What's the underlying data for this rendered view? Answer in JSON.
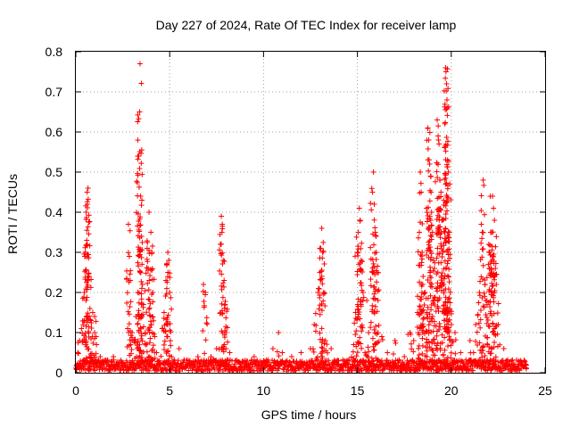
{
  "chart_data": {
    "type": "scatter",
    "title": "Day 227 of 2024, Rate Of TEC Index for receiver lamp",
    "xlabel": "GPS time / hours",
    "ylabel": "ROTI / TECUs",
    "xlim": [
      0,
      25
    ],
    "ylim": [
      0,
      0.8
    ],
    "x_ticks": [
      "0",
      "5",
      "10",
      "15",
      "20",
      "25"
    ],
    "y_ticks": [
      "0",
      "0.1",
      "0.2",
      "0.3",
      "0.4",
      "0.5",
      "0.6",
      "0.7",
      "0.8"
    ],
    "grid": true,
    "legend": "none",
    "marker": "plus",
    "color": "#ff0000",
    "x_range_of_data": [
      0,
      24
    ],
    "baseline_level": 0.02,
    "series": [
      {
        "points": [
          [
            0.05,
            0.01
          ],
          [
            0.1,
            0.05
          ],
          [
            0.2,
            0.08
          ],
          [
            0.3,
            0.11
          ],
          [
            0.45,
            0.2
          ],
          [
            0.5,
            0.29
          ],
          [
            0.55,
            0.4
          ],
          [
            0.6,
            0.45
          ],
          [
            0.65,
            0.46
          ],
          [
            0.62,
            0.42
          ],
          [
            0.58,
            0.33
          ],
          [
            0.7,
            0.24
          ],
          [
            0.75,
            0.16
          ],
          [
            0.8,
            0.13
          ],
          [
            0.9,
            0.15
          ],
          [
            1.0,
            0.14
          ],
          [
            1.0,
            0.1
          ],
          [
            1.1,
            0.07
          ],
          [
            1.3,
            0.04
          ],
          [
            1.6,
            0.03
          ],
          [
            2.0,
            0.04
          ],
          [
            2.5,
            0.02
          ],
          [
            2.8,
            0.37
          ],
          [
            2.85,
            0.29
          ],
          [
            2.9,
            0.23
          ],
          [
            3.0,
            0.1
          ],
          [
            3.1,
            0.08
          ],
          [
            3.2,
            0.14
          ],
          [
            3.3,
            0.2
          ],
          [
            3.35,
            0.54
          ],
          [
            3.4,
            0.65
          ],
          [
            3.42,
            0.77
          ],
          [
            3.45,
            0.44
          ],
          [
            3.5,
            0.34
          ],
          [
            3.55,
            0.22
          ],
          [
            3.6,
            0.17
          ],
          [
            3.7,
            0.1
          ],
          [
            3.8,
            0.31
          ],
          [
            3.85,
            0.26
          ],
          [
            3.9,
            0.4
          ],
          [
            4.0,
            0.35
          ],
          [
            4.05,
            0.3
          ],
          [
            4.1,
            0.2
          ],
          [
            4.2,
            0.09
          ],
          [
            4.3,
            0.05
          ],
          [
            4.6,
            0.11
          ],
          [
            4.7,
            0.15
          ],
          [
            4.8,
            0.23
          ],
          [
            4.85,
            0.27
          ],
          [
            4.9,
            0.3
          ],
          [
            4.95,
            0.28
          ],
          [
            5.0,
            0.2
          ],
          [
            5.1,
            0.04
          ],
          [
            5.5,
            0.06
          ],
          [
            6.0,
            0.03
          ],
          [
            6.5,
            0.04
          ],
          [
            6.8,
            0.22
          ],
          [
            6.9,
            0.2
          ],
          [
            7.2,
            0.04
          ],
          [
            7.5,
            0.06
          ],
          [
            7.7,
            0.32
          ],
          [
            7.75,
            0.39
          ],
          [
            7.8,
            0.37
          ],
          [
            7.85,
            0.28
          ],
          [
            7.9,
            0.23
          ],
          [
            7.95,
            0.17
          ],
          [
            8.0,
            0.1
          ],
          [
            8.2,
            0.05
          ],
          [
            8.5,
            0.03
          ],
          [
            9.0,
            0.03
          ],
          [
            9.5,
            0.04
          ],
          [
            10.0,
            0.03
          ],
          [
            10.5,
            0.06
          ],
          [
            10.8,
            0.1
          ],
          [
            11.0,
            0.05
          ],
          [
            11.5,
            0.04
          ],
          [
            12.0,
            0.05
          ],
          [
            12.5,
            0.06
          ],
          [
            12.7,
            0.12
          ],
          [
            12.9,
            0.2
          ],
          [
            13.0,
            0.25
          ],
          [
            13.05,
            0.31
          ],
          [
            13.1,
            0.36
          ],
          [
            13.15,
            0.3
          ],
          [
            13.2,
            0.2
          ],
          [
            13.3,
            0.08
          ],
          [
            13.6,
            0.06
          ],
          [
            14.0,
            0.03
          ],
          [
            14.5,
            0.03
          ],
          [
            14.8,
            0.07
          ],
          [
            14.9,
            0.15
          ],
          [
            15.0,
            0.3
          ],
          [
            15.05,
            0.35
          ],
          [
            15.1,
            0.41
          ],
          [
            15.15,
            0.38
          ],
          [
            15.2,
            0.28
          ],
          [
            15.3,
            0.2
          ],
          [
            15.5,
            0.18
          ],
          [
            15.6,
            0.1
          ],
          [
            15.8,
            0.45
          ],
          [
            15.85,
            0.5
          ],
          [
            15.9,
            0.42
          ],
          [
            15.95,
            0.35
          ],
          [
            16.0,
            0.3
          ],
          [
            16.05,
            0.25
          ],
          [
            16.1,
            0.1
          ],
          [
            16.3,
            0.09
          ],
          [
            16.6,
            0.05
          ],
          [
            17.0,
            0.08
          ],
          [
            17.5,
            0.04
          ],
          [
            17.8,
            0.1
          ],
          [
            18.0,
            0.08
          ],
          [
            18.2,
            0.15
          ],
          [
            18.3,
            0.35
          ],
          [
            18.35,
            0.5
          ],
          [
            18.4,
            0.45
          ],
          [
            18.45,
            0.3
          ],
          [
            18.5,
            0.24
          ],
          [
            18.6,
            0.2
          ],
          [
            18.7,
            0.15
          ],
          [
            18.75,
            0.61
          ],
          [
            18.8,
            0.58
          ],
          [
            18.85,
            0.52
          ],
          [
            18.9,
            0.49
          ],
          [
            18.95,
            0.4
          ],
          [
            19.0,
            0.35
          ],
          [
            19.05,
            0.28
          ],
          [
            19.1,
            0.26
          ],
          [
            19.2,
            0.21
          ],
          [
            19.25,
            0.63
          ],
          [
            19.3,
            0.59
          ],
          [
            19.35,
            0.57
          ],
          [
            19.4,
            0.48
          ],
          [
            19.45,
            0.45
          ],
          [
            19.5,
            0.38
          ],
          [
            19.55,
            0.3
          ],
          [
            19.6,
            0.22
          ],
          [
            19.65,
            0.15
          ],
          [
            19.7,
            0.76
          ],
          [
            19.72,
            0.75
          ],
          [
            19.75,
            0.72
          ],
          [
            19.78,
            0.66
          ],
          [
            19.8,
            0.53
          ],
          [
            19.85,
            0.5
          ],
          [
            19.9,
            0.35
          ],
          [
            19.95,
            0.2
          ],
          [
            20.0,
            0.12
          ],
          [
            20.2,
            0.1
          ],
          [
            20.5,
            0.05
          ],
          [
            21.0,
            0.08
          ],
          [
            21.3,
            0.12
          ],
          [
            21.5,
            0.2
          ],
          [
            21.6,
            0.37
          ],
          [
            21.65,
            0.35
          ],
          [
            21.7,
            0.48
          ],
          [
            21.8,
            0.22
          ],
          [
            21.9,
            0.18
          ],
          [
            22.0,
            0.32
          ],
          [
            22.05,
            0.3
          ],
          [
            22.1,
            0.35
          ],
          [
            22.15,
            0.35
          ],
          [
            22.2,
            0.44
          ],
          [
            22.25,
            0.41
          ],
          [
            22.3,
            0.38
          ],
          [
            22.35,
            0.26
          ],
          [
            22.4,
            0.22
          ],
          [
            22.5,
            0.12
          ],
          [
            22.8,
            0.06
          ],
          [
            23.2,
            0.03
          ],
          [
            23.6,
            0.02
          ],
          [
            24.0,
            0.01
          ]
        ]
      }
    ]
  }
}
